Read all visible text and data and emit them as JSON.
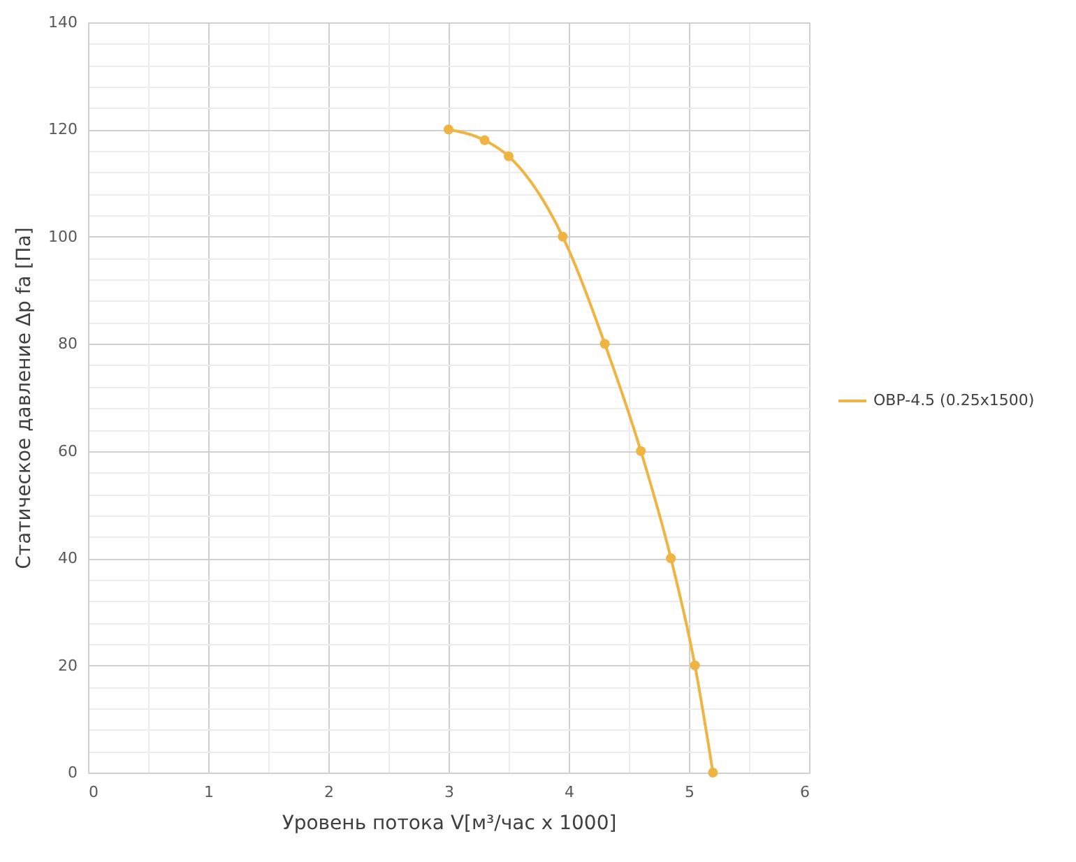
{
  "chart_data": {
    "type": "line",
    "xlabel": "Уровень потока V[м³/час x 1000]",
    "ylabel": "Статическое давление Δp fa [Па]",
    "x": [
      3,
      3.3,
      3.5,
      3.95,
      4.3,
      4.6,
      4.85,
      5.05,
      5.2
    ],
    "series": [
      {
        "name": "OBP-4.5 (0.25x1500)",
        "color": "#f0b442",
        "values": [
          120,
          118,
          115,
          100,
          80,
          60,
          40,
          20,
          0
        ]
      }
    ],
    "xlim": [
      0,
      6
    ],
    "xticks": [
      0,
      {
        "value": 0.5,
        "label": null
      },
      1,
      {
        "value": 1.5,
        "label": null
      },
      2,
      {
        "value": 2.5,
        "label": null
      },
      3,
      {
        "value": 3.5,
        "label": null
      },
      4,
      {
        "value": 4.5,
        "label": null
      },
      5,
      {
        "value": 5.5,
        "label": null
      },
      6
    ],
    "ylim": [
      0,
      140
    ],
    "yticks": [
      0,
      {
        "value": 4,
        "label": null
      },
      {
        "value": 8,
        "label": null
      },
      {
        "value": 12,
        "label": null
      },
      {
        "value": 16,
        "label": null
      },
      20,
      {
        "value": 24,
        "label": null
      },
      {
        "value": 28,
        "label": null
      },
      {
        "value": 32,
        "label": null
      },
      {
        "value": 36,
        "label": null
      },
      40,
      {
        "value": 44,
        "label": null
      },
      {
        "value": 48,
        "label": null
      },
      {
        "value": 52,
        "label": null
      },
      {
        "value": 56,
        "label": null
      },
      60,
      {
        "value": 64,
        "label": null
      },
      {
        "value": 68,
        "label": null
      },
      {
        "value": 72,
        "label": null
      },
      {
        "value": 76,
        "label": null
      },
      80,
      {
        "value": 84,
        "label": null
      },
      {
        "value": 88,
        "label": null
      },
      {
        "value": 92,
        "label": null
      },
      {
        "value": 96,
        "label": null
      },
      100,
      {
        "value": 104,
        "label": null
      },
      {
        "value": 108,
        "label": null
      },
      {
        "value": 112,
        "label": null
      },
      {
        "value": 116,
        "label": null
      },
      120,
      {
        "value": 124,
        "label": null
      },
      {
        "value": 128,
        "label": null
      },
      {
        "value": 132,
        "label": null
      },
      {
        "value": 136,
        "label": null
      },
      140
    ],
    "grid": true,
    "legend": "right",
    "marker": "circle",
    "line_style": "solid"
  }
}
